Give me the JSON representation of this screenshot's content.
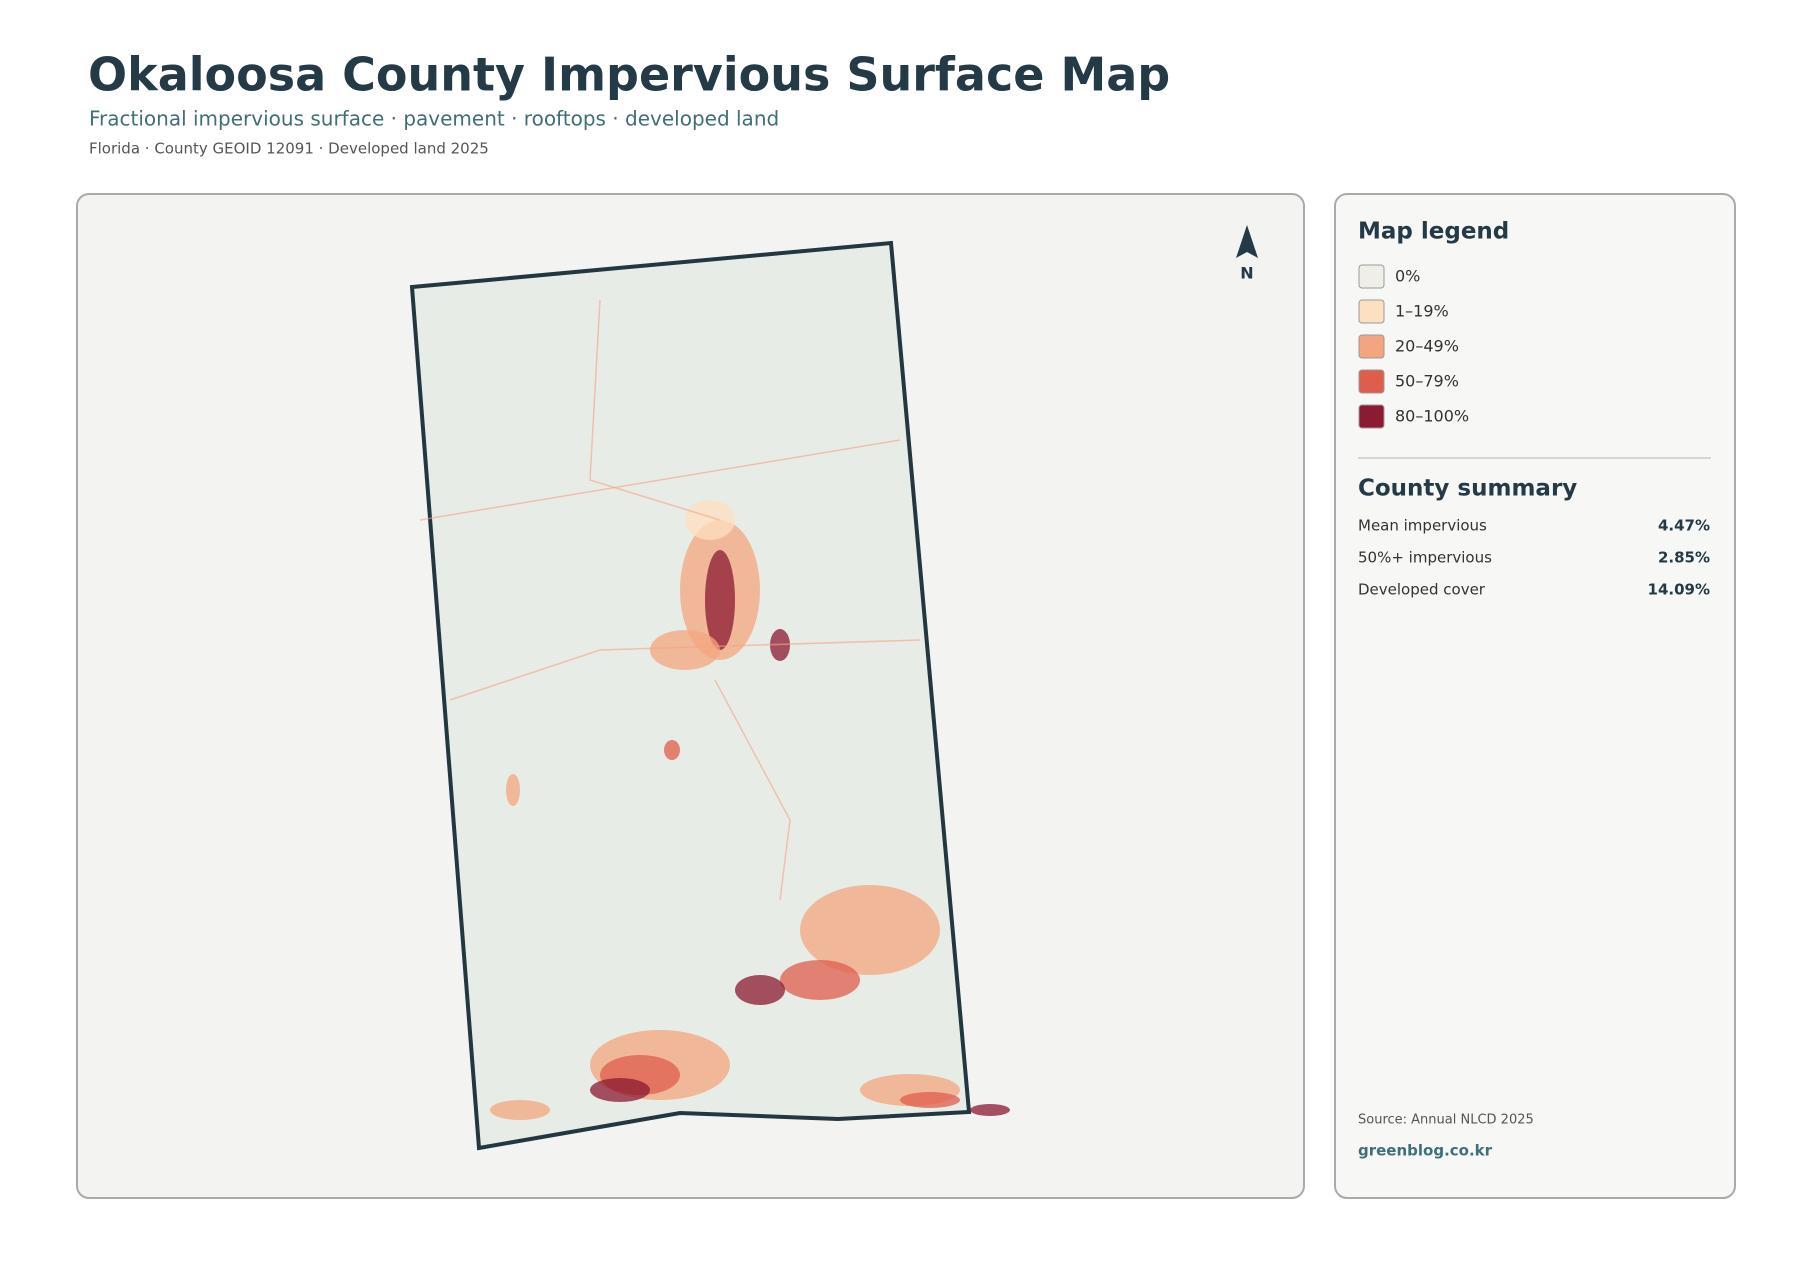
{
  "header": {
    "title": "Okaloosa County Impervious Surface Map",
    "subtitle": "Fractional impervious surface · pavement · rooftops · developed land",
    "meta": "Florida · County GEOID 12091 · Developed land 2025"
  },
  "map": {
    "north": "N"
  },
  "legend": {
    "title": "Map legend",
    "items": [
      {
        "label": "0%",
        "color": "#efeee9"
      },
      {
        "label": "1–19%",
        "color": "#fde0c0"
      },
      {
        "label": "20–49%",
        "color": "#f4a57f"
      },
      {
        "label": "50–79%",
        "color": "#df5d4c"
      },
      {
        "label": "80–100%",
        "color": "#8b1a32"
      }
    ]
  },
  "summary": {
    "title": "County summary",
    "rows": [
      {
        "label": "Mean impervious",
        "value": "4.47%"
      },
      {
        "label": "50%+ impervious",
        "value": "2.85%"
      },
      {
        "label": "Developed cover",
        "value": "14.09%"
      }
    ]
  },
  "footer": {
    "source": "Source: Annual NLCD 2025",
    "site": "greenblog.co.kr"
  }
}
